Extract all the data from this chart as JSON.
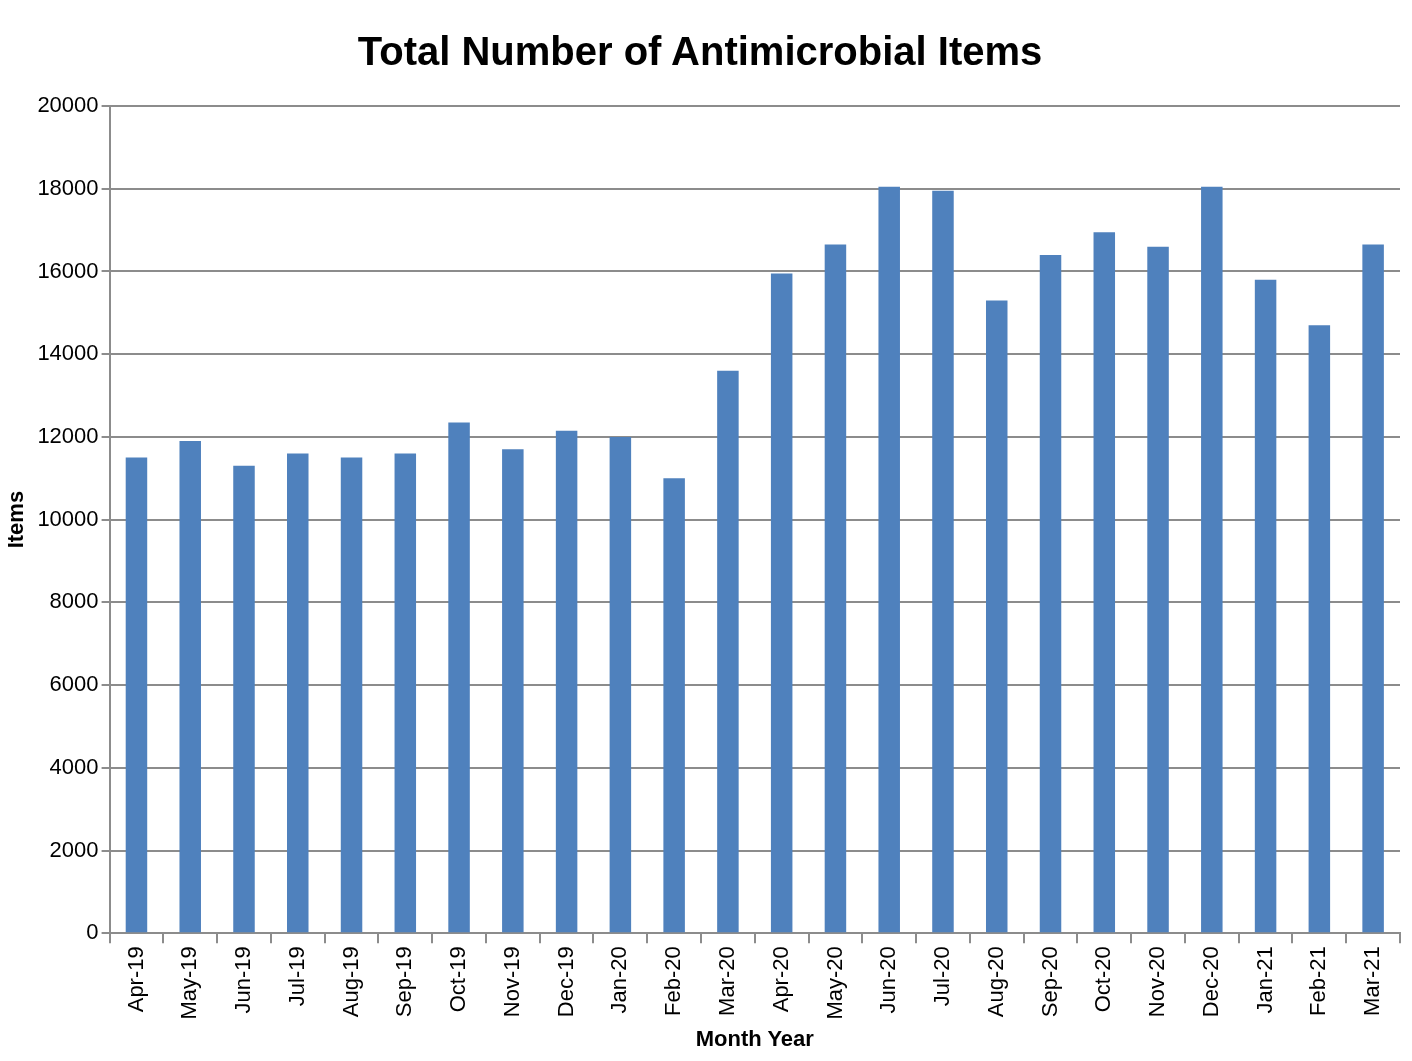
{
  "chart_data": {
    "type": "bar",
    "title": "Total Number of Antimicrobial Items",
    "xlabel": "Month Year",
    "ylabel": "Items",
    "categories": [
      "Apr-19",
      "May-19",
      "Jun-19",
      "Jul-19",
      "Aug-19",
      "Sep-19",
      "Oct-19",
      "Nov-19",
      "Dec-19",
      "Jan-20",
      "Feb-20",
      "Mar-20",
      "Apr-20",
      "May-20",
      "Jun-20",
      "Jul-20",
      "Aug-20",
      "Sep-20",
      "Oct-20",
      "Nov-20",
      "Dec-20",
      "Jan-21",
      "Feb-21",
      "Mar-21"
    ],
    "values": [
      11500,
      11900,
      11300,
      11600,
      11500,
      11600,
      12350,
      11700,
      12150,
      12000,
      11000,
      13600,
      15950,
      16650,
      18050,
      17950,
      15300,
      16400,
      16950,
      16600,
      18050,
      15800,
      14700,
      16650
    ],
    "color": "#4f81bd",
    "ylim": [
      0,
      20000
    ],
    "yticks": [
      0,
      2000,
      4000,
      6000,
      8000,
      10000,
      12000,
      14000,
      16000,
      18000,
      20000
    ],
    "grid": "y"
  }
}
